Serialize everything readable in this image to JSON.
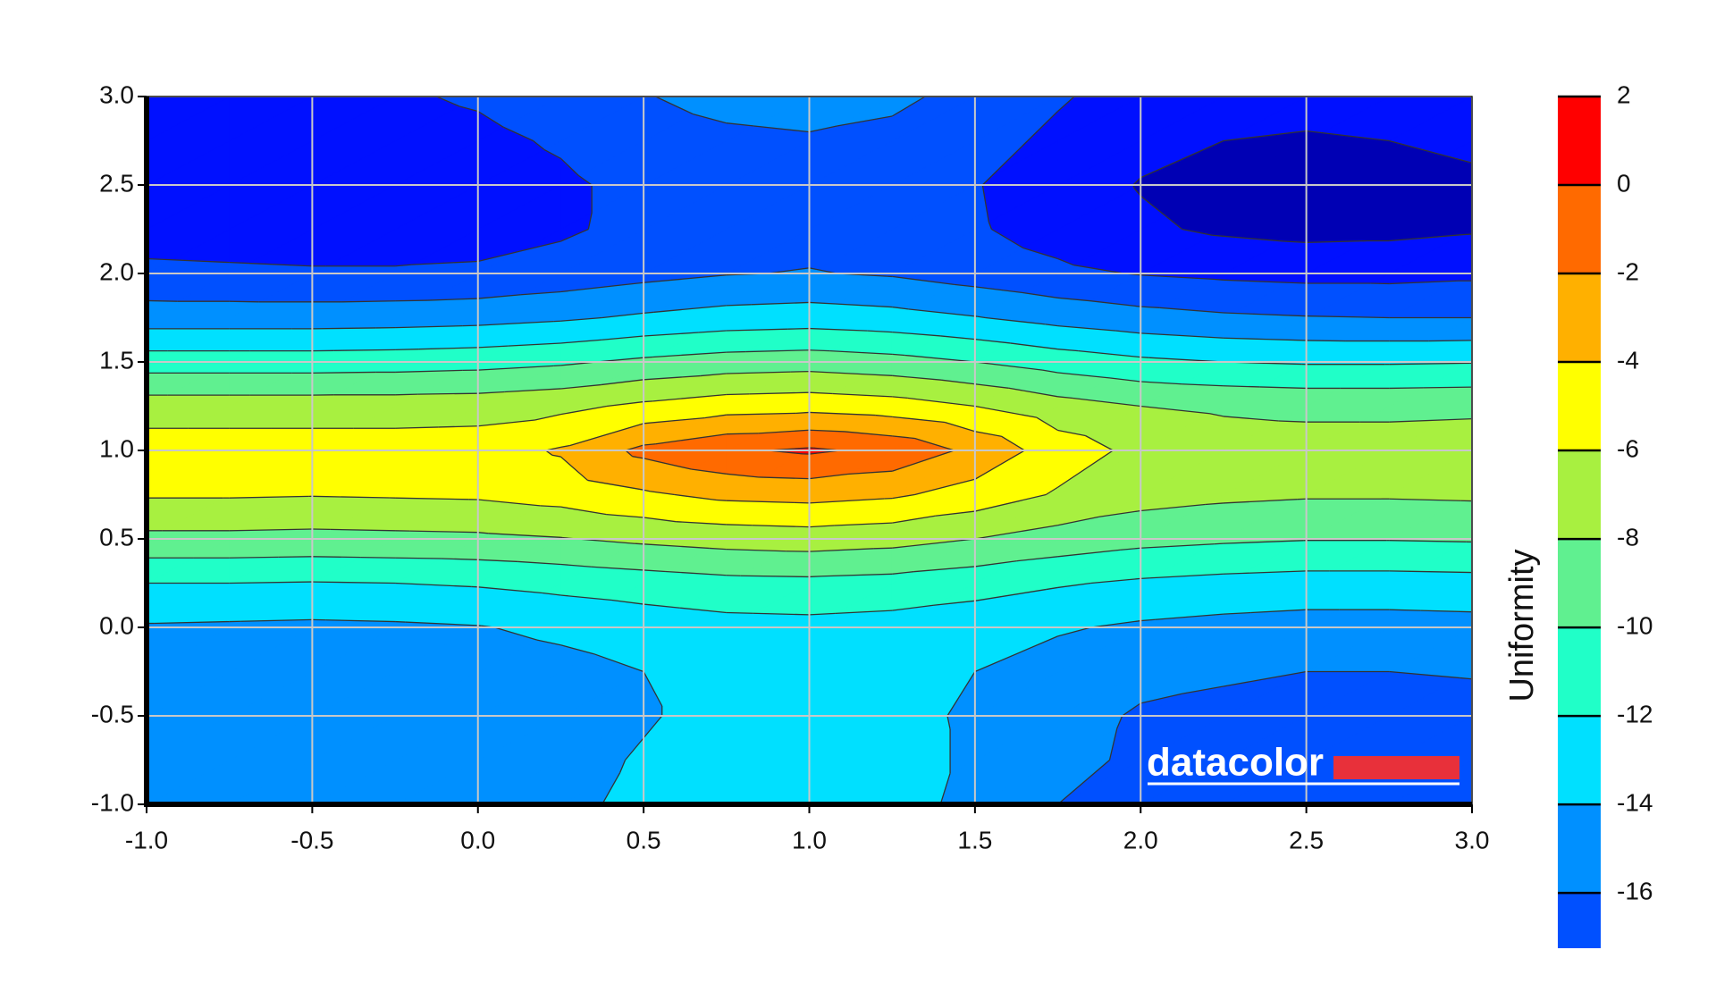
{
  "chart_data": {
    "type": "contour",
    "x": [
      -1,
      -0.75,
      -0.5,
      -0.25,
      0,
      0.25,
      0.5,
      0.75,
      1,
      1.25,
      1.5,
      1.75,
      2,
      2.25,
      2.5,
      2.75,
      3
    ],
    "y": [
      -1,
      -0.75,
      -0.5,
      -0.25,
      0,
      0.25,
      0.5,
      0.75,
      1,
      1.25,
      1.5,
      1.75,
      2,
      2.25,
      2.5,
      2.75,
      3
    ],
    "z": [
      [
        -15,
        -15,
        -15,
        -15,
        -15,
        -14.5,
        -13.5,
        -13,
        -13,
        -13.3,
        -14.5,
        -16,
        -16.5,
        -16.7,
        -17,
        -17,
        -17
      ],
      [
        -15,
        -15,
        -15,
        -15,
        -15,
        -14.7,
        -13.8,
        -13.2,
        -13,
        -13.3,
        -14.3,
        -15.5,
        -16.3,
        -16.5,
        -16.8,
        -16.8,
        -16.8
      ],
      [
        -15,
        -15.1,
        -15.2,
        -15.3,
        -15.3,
        -15,
        -14.2,
        -13.3,
        -13,
        -13.4,
        -14.3,
        -15.3,
        -16.2,
        -16.4,
        -16.6,
        -16.6,
        -16.5
      ],
      [
        -14.9,
        -15,
        -15.1,
        -15.1,
        -15,
        -14.6,
        -14,
        -13.3,
        -13,
        -13.3,
        -14,
        -14.8,
        -15.5,
        -15.8,
        -16,
        -16,
        -15.9
      ],
      [
        -14.2,
        -14.3,
        -14.4,
        -14.3,
        -14.1,
        -13.6,
        -13.1,
        -12.7,
        -12.6,
        -12.8,
        -13.2,
        -13.8,
        -14.3,
        -14.6,
        -14.8,
        -14.8,
        -14.7
      ],
      [
        -12,
        -12,
        -12.1,
        -12,
        -11.8,
        -11.4,
        -11,
        -10.6,
        -10.5,
        -10.7,
        -11.2,
        -11.8,
        -12.3,
        -12.6,
        -12.8,
        -12.8,
        -12.7
      ],
      [
        -8.5,
        -8.5,
        -8.6,
        -8.5,
        -8.4,
        -8.1,
        -7.6,
        -7.2,
        -7,
        -7.3,
        -8,
        -8.8,
        -9.4,
        -9.7,
        -9.9,
        -9.9,
        -9.8
      ],
      [
        -5.8,
        -5.8,
        -5.9,
        -5.8,
        -5.7,
        -5.2,
        -4.3,
        -3.5,
        -3.3,
        -3.7,
        -4.8,
        -6.2,
        -7.2,
        -7.6,
        -7.8,
        -7.8,
        -7.7
      ],
      [
        -5,
        -5,
        -5,
        -5,
        -4.9,
        -3.8,
        -1.5,
        -0.3,
        0.3,
        -0.5,
        -2.5,
        -5,
        -6.5,
        -7,
        -7.1,
        -7.1,
        -7
      ],
      [
        -7,
        -7,
        -7,
        -7,
        -6.9,
        -6.5,
        -5.6,
        -4.9,
        -4.7,
        -5.1,
        -6,
        -7.2,
        -8,
        -8.3,
        -8.5,
        -8.5,
        -8.4
      ],
      [
        -11,
        -11,
        -11,
        -10.9,
        -10.7,
        -10.3,
        -9.6,
        -9.1,
        -8.9,
        -9.3,
        -10,
        -10.9,
        -11.6,
        -12,
        -12.2,
        -12.2,
        -12.1
      ],
      [
        -15,
        -15,
        -15,
        -14.9,
        -14.7,
        -14.3,
        -13.7,
        -13.2,
        -13,
        -13.3,
        -13.9,
        -14.7,
        -15.3,
        -15.7,
        -15.9,
        -16,
        -16
      ],
      [
        -17.6,
        -17.7,
        -17.8,
        -17.8,
        -17.7,
        -17.2,
        -16.6,
        -16.1,
        -15.9,
        -16.2,
        -16.9,
        -17.6,
        -18.1,
        -18.4,
        -18.6,
        -18.6,
        -18.4
      ],
      [
        -18.8,
        -18.9,
        -19,
        -19,
        -18.8,
        -18.3,
        -17.4,
        -16.9,
        -16.7,
        -17,
        -17.8,
        -18.8,
        -19.7,
        -20.3,
        -20.6,
        -20.5,
        -20.2
      ],
      [
        -19,
        -19.1,
        -19.1,
        -19,
        -18.8,
        -18.3,
        -17.5,
        -17.1,
        -17,
        -17.2,
        -17.9,
        -19,
        -20.1,
        -20.7,
        -21,
        -20.8,
        -20.4
      ],
      [
        -18.7,
        -18.8,
        -18.8,
        -18.7,
        -18.4,
        -17.8,
        -16.9,
        -16.4,
        -16.2,
        -16.5,
        -17.3,
        -18.4,
        -19.5,
        -20,
        -20.2,
        -20,
        -19.6
      ],
      [
        -18.3,
        -18.3,
        -18.3,
        -18.2,
        -17.8,
        -17.1,
        -16.1,
        -15.4,
        -15.2,
        -15.6,
        -16.6,
        -17.8,
        -18.8,
        -19.2,
        -19.3,
        -19.1,
        -18.8
      ]
    ],
    "levels": [
      -22,
      -20,
      -18,
      -16,
      -14,
      -12,
      -10,
      -8,
      -6,
      -4,
      -2,
      0,
      2
    ],
    "colors": [
      "#0000b4",
      "#0010ff",
      "#0050ff",
      "#0090ff",
      "#00e0ff",
      "#20ffc8",
      "#60f090",
      "#a8f040",
      "#ffff00",
      "#ffb000",
      "#ff6a00",
      "#ff0000"
    ],
    "xlim": [
      -1,
      3
    ],
    "ylim": [
      -1,
      3
    ],
    "xticks": [
      {
        "value": -1,
        "label": "-1.0"
      },
      {
        "value": -0.5,
        "label": "-0.5"
      },
      {
        "value": 0,
        "label": "0.0"
      },
      {
        "value": 0.5,
        "label": "0.5"
      },
      {
        "value": 1,
        "label": "1.0"
      },
      {
        "value": 1.5,
        "label": "1.5"
      },
      {
        "value": 2,
        "label": "2.0"
      },
      {
        "value": 2.5,
        "label": "2.5"
      },
      {
        "value": 3,
        "label": "3.0"
      }
    ],
    "yticks": [
      {
        "value": -1,
        "label": "-1.0"
      },
      {
        "value": -0.5,
        "label": "-0.5"
      },
      {
        "value": 0,
        "label": "0.0"
      },
      {
        "value": 0.5,
        "label": "0.5"
      },
      {
        "value": 1,
        "label": "1.0"
      },
      {
        "value": 1.5,
        "label": "1.5"
      },
      {
        "value": 2,
        "label": "2.0"
      },
      {
        "value": 2.5,
        "label": "2.5"
      },
      {
        "value": 3,
        "label": "3.0"
      }
    ],
    "grid": true,
    "colorbar": {
      "label": "Uniformity",
      "lim": [
        -17.25,
        2
      ],
      "ticks": [
        2,
        0,
        -2,
        -4,
        -6,
        -8,
        -10,
        -12,
        -14,
        -16
      ]
    },
    "watermark": "datacolor"
  }
}
